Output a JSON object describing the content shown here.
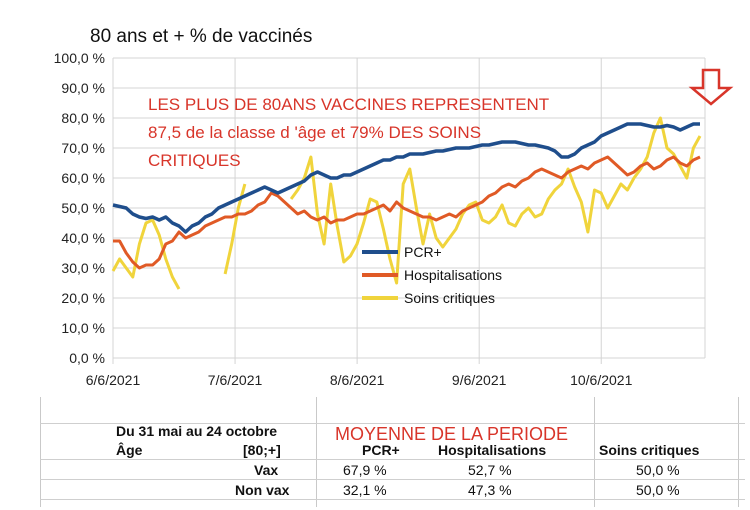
{
  "chart_data": {
    "type": "line",
    "title": "80 ans et + % de vaccinés",
    "xlabel": "",
    "ylabel": "",
    "ylim": [
      0,
      100
    ],
    "y_ticks": [
      "100,0 %",
      "90,0 %",
      "80,0 %",
      "70,0 %",
      "60,0 %",
      "50,0 %",
      "40,0 %",
      "30,0 %",
      "20,0 %",
      "10,0 %",
      "0,0 %"
    ],
    "x_ticks": [
      "6/6/2021",
      "7/6/2021",
      "8/6/2021",
      "9/6/2021",
      "10/6/2021"
    ],
    "grid": true,
    "legend_position": "center-right",
    "annotation": [
      "LES PLUS DE 80ANS VACCINES REPRESENTENT",
      "87,5  de la classe d 'âge et 79%  DES SOINS",
      "CRITIQUES"
    ],
    "series": [
      {
        "name": "PCR+",
        "color": "#1f4e8c",
        "values": [
          51,
          50.5,
          50,
          48,
          47,
          46.5,
          47,
          46,
          47,
          45,
          44,
          42,
          44,
          45,
          47,
          48,
          50,
          51,
          52,
          53,
          54,
          55,
          56,
          57,
          56,
          55,
          56,
          57,
          58,
          59,
          61,
          62,
          61,
          60,
          60,
          61,
          61,
          62,
          63,
          64,
          65,
          66,
          66,
          67,
          67,
          68,
          68,
          68,
          68.5,
          69,
          69,
          69.5,
          70,
          70,
          70,
          70.5,
          71,
          71,
          71.5,
          72,
          72,
          72,
          71.5,
          71,
          71,
          70.5,
          70,
          69,
          67,
          67,
          68,
          70,
          71,
          72,
          74,
          75,
          76,
          77,
          78,
          78,
          78,
          77.5,
          77,
          77,
          77.5,
          77,
          76,
          77,
          78,
          78
        ]
      },
      {
        "name": "Hospitalisations",
        "color": "#e05a26",
        "values": [
          39,
          39,
          35,
          32,
          30,
          31,
          31,
          33,
          38,
          39,
          42,
          40,
          41,
          42,
          44,
          45,
          46,
          47,
          47,
          48,
          48,
          49,
          51,
          52,
          55,
          54,
          52,
          50,
          48,
          49,
          47,
          46,
          47,
          45,
          46,
          46,
          47,
          48,
          48,
          49,
          50,
          51,
          49,
          52,
          50,
          49,
          48,
          47,
          47,
          46,
          47,
          48,
          47,
          49,
          50,
          51,
          52,
          54,
          55,
          57,
          58,
          57,
          59,
          60,
          62,
          63,
          62,
          61,
          60,
          62,
          63,
          64,
          63,
          65,
          66,
          67,
          65,
          63,
          61,
          62,
          64,
          65,
          63,
          64,
          66,
          67,
          65,
          64,
          66,
          67
        ]
      },
      {
        "name": "Soins critiques",
        "color": "#f0d43c",
        "values": [
          29,
          33,
          30,
          27,
          38,
          45,
          46,
          41,
          33,
          27,
          23,
          null,
          null,
          null,
          null,
          null,
          null,
          28,
          38,
          50,
          58,
          null,
          null,
          null,
          null,
          null,
          null,
          53,
          56,
          60,
          67,
          48,
          38,
          58,
          44,
          32,
          34,
          38,
          45,
          53,
          52,
          43,
          33,
          25,
          58,
          63,
          50,
          38,
          48,
          40,
          37,
          40,
          43,
          48,
          51,
          52,
          46,
          45,
          47,
          51,
          45,
          44,
          48,
          50,
          47,
          48,
          53,
          56,
          58,
          63,
          57,
          52,
          42,
          56,
          55,
          50,
          54,
          58,
          56,
          60,
          63,
          67,
          75,
          80,
          70,
          68,
          64,
          60,
          70,
          74
        ]
      }
    ]
  },
  "table": {
    "row1": {
      "c1": "Du 31 mai au 24 octobre"
    },
    "row2": {
      "c1": "Âge",
      "c2": "[80;+]",
      "c3": "PCR+",
      "c4": "Hospitalisations",
      "c5": "Soins critiques"
    },
    "row3": {
      "c2": "Vax",
      "c3": "67,9 %",
      "c4": "52,7 %",
      "c5": "50,0 %"
    },
    "row4": {
      "c2": "Non vax",
      "c3": "32,1 %",
      "c4": "47,3 %",
      "c5": "50,0 %"
    },
    "moyenne": "MOYENNE DE LA PERIODE"
  },
  "colors": {
    "pcr": "#1f4e8c",
    "hosp": "#e05a26",
    "soins": "#f0d43c",
    "annotation": "#d8352a",
    "arrow": "#d8352a"
  },
  "icons": {
    "arrow": "down-arrow-icon"
  }
}
